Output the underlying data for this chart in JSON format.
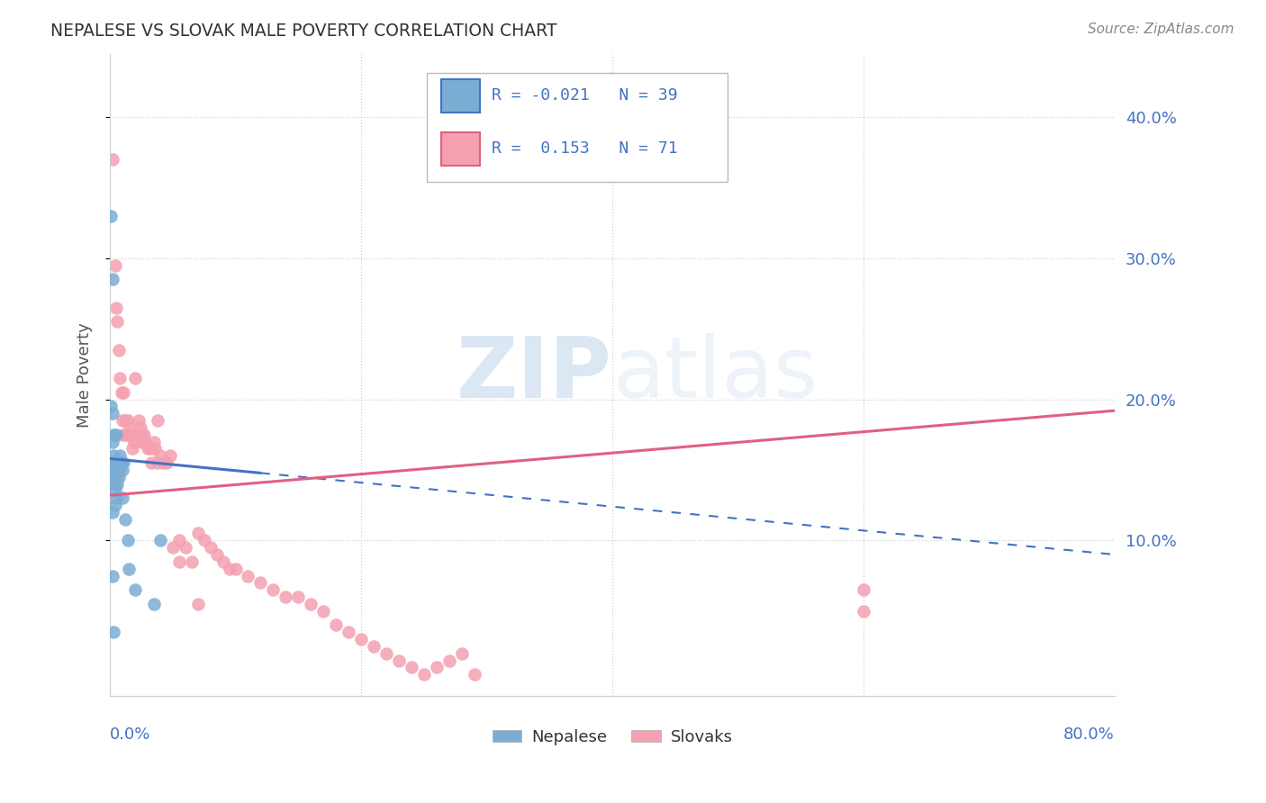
{
  "title": "NEPALESE VS SLOVAK MALE POVERTY CORRELATION CHART",
  "source": "Source: ZipAtlas.com",
  "ylabel": "Male Poverty",
  "ytick_values": [
    0.1,
    0.2,
    0.3,
    0.4
  ],
  "xlim": [
    0.0,
    0.8
  ],
  "ylim": [
    -0.01,
    0.445
  ],
  "nepalese_R": -0.021,
  "nepalese_N": 39,
  "slovak_R": 0.153,
  "slovak_N": 71,
  "nepalese_color": "#7aadd4",
  "slovak_color": "#f4a0b0",
  "nepalese_line_color": "#4472c4",
  "slovak_line_color": "#e06080",
  "nepalese_line_solid_end": 0.12,
  "nepalese_line_x0": 0.0,
  "nepalese_line_y0": 0.158,
  "nepalese_line_y1_at_80": 0.09,
  "slovak_line_x0": 0.0,
  "slovak_line_y0": 0.132,
  "slovak_line_y1_at_80": 0.192,
  "nepalese_x": [
    0.001,
    0.001,
    0.001,
    0.002,
    0.002,
    0.002,
    0.002,
    0.003,
    0.003,
    0.003,
    0.003,
    0.004,
    0.004,
    0.004,
    0.004,
    0.005,
    0.005,
    0.005,
    0.005,
    0.006,
    0.006,
    0.006,
    0.007,
    0.007,
    0.007,
    0.008,
    0.008,
    0.009,
    0.01,
    0.01,
    0.011,
    0.012,
    0.014,
    0.015,
    0.02,
    0.035,
    0.04,
    0.001,
    0.002
  ],
  "nepalese_y": [
    0.33,
    0.155,
    0.14,
    0.285,
    0.19,
    0.17,
    0.075,
    0.175,
    0.16,
    0.15,
    0.035,
    0.145,
    0.14,
    0.135,
    0.125,
    0.175,
    0.155,
    0.145,
    0.13,
    0.155,
    0.15,
    0.14,
    0.155,
    0.15,
    0.145,
    0.16,
    0.155,
    0.155,
    0.15,
    0.13,
    0.155,
    0.115,
    0.1,
    0.08,
    0.065,
    0.055,
    0.1,
    0.195,
    0.12
  ],
  "slovak_x": [
    0.002,
    0.004,
    0.005,
    0.006,
    0.007,
    0.008,
    0.009,
    0.01,
    0.01,
    0.011,
    0.012,
    0.013,
    0.014,
    0.015,
    0.016,
    0.017,
    0.018,
    0.019,
    0.02,
    0.022,
    0.023,
    0.024,
    0.025,
    0.026,
    0.027,
    0.028,
    0.03,
    0.032,
    0.033,
    0.035,
    0.036,
    0.038,
    0.04,
    0.042,
    0.045,
    0.048,
    0.05,
    0.055,
    0.06,
    0.065,
    0.07,
    0.075,
    0.08,
    0.09,
    0.095,
    0.1,
    0.11,
    0.12,
    0.13,
    0.14,
    0.15,
    0.16,
    0.17,
    0.18,
    0.19,
    0.2,
    0.21,
    0.22,
    0.23,
    0.24,
    0.25,
    0.26,
    0.27,
    0.28,
    0.29,
    0.038,
    0.055,
    0.07,
    0.085,
    0.6,
    0.6
  ],
  "slovak_y": [
    0.37,
    0.295,
    0.265,
    0.255,
    0.235,
    0.215,
    0.205,
    0.185,
    0.175,
    0.205,
    0.185,
    0.175,
    0.185,
    0.175,
    0.18,
    0.175,
    0.165,
    0.17,
    0.215,
    0.175,
    0.185,
    0.18,
    0.175,
    0.17,
    0.175,
    0.17,
    0.165,
    0.165,
    0.155,
    0.17,
    0.165,
    0.155,
    0.16,
    0.155,
    0.155,
    0.16,
    0.095,
    0.1,
    0.095,
    0.085,
    0.105,
    0.1,
    0.095,
    0.085,
    0.08,
    0.08,
    0.075,
    0.07,
    0.065,
    0.06,
    0.06,
    0.055,
    0.05,
    0.04,
    0.035,
    0.03,
    0.025,
    0.02,
    0.015,
    0.01,
    0.005,
    0.01,
    0.015,
    0.02,
    0.005,
    0.185,
    0.085,
    0.055,
    0.09,
    0.065,
    0.05
  ]
}
